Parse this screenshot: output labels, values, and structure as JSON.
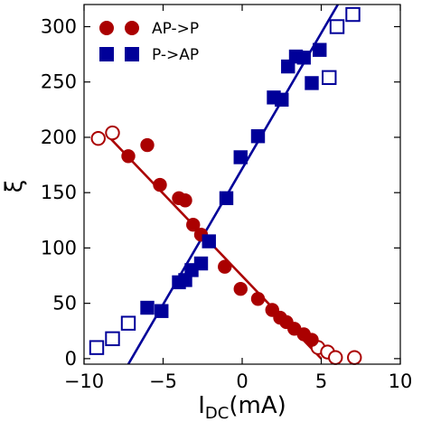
{
  "chart_data": {
    "type": "scatter",
    "xlabel": "I",
    "xlabel_sub": "DC",
    "xlabel_unit": "(mA)",
    "ylabel": "ξ",
    "xlim": [
      -10,
      10
    ],
    "ylim": [
      -5,
      320
    ],
    "xticks": [
      -10,
      -5,
      0,
      5,
      10
    ],
    "xtick_labels": [
      "−10",
      "−5",
      "0",
      "5",
      "10"
    ],
    "yticks": [
      0,
      50,
      100,
      150,
      200,
      250,
      300
    ],
    "ytick_labels": [
      "0",
      "50",
      "100",
      "150",
      "200",
      "250",
      "300"
    ],
    "grid": false,
    "legend_position": "top-left",
    "series": [
      {
        "name": "AP->P",
        "marker": "circle",
        "color": "#aa0000",
        "filled_points": [
          [
            -6,
            193
          ],
          [
            -7.2,
            183
          ],
          [
            -5.2,
            157
          ],
          [
            -4,
            145
          ],
          [
            -3.6,
            143
          ],
          [
            -3.1,
            121
          ],
          [
            -2.6,
            112
          ],
          [
            -1.1,
            83
          ],
          [
            -0.1,
            63
          ],
          [
            1,
            54
          ],
          [
            1.9,
            44
          ],
          [
            2.4,
            37
          ],
          [
            2.8,
            33
          ],
          [
            3.3,
            27
          ],
          [
            3.9,
            22
          ],
          [
            4.4,
            17
          ]
        ],
        "open_points": [
          [
            -9.1,
            199
          ],
          [
            -8.2,
            204
          ],
          [
            4.8,
            10
          ],
          [
            5.4,
            6
          ],
          [
            5.9,
            1
          ],
          [
            7.1,
            1
          ]
        ],
        "fit_line": [
          [
            -8.4,
            200
          ],
          [
            5,
            0
          ]
        ]
      },
      {
        "name": "P->AP",
        "marker": "square",
        "color": "#000099",
        "filled_points": [
          [
            -6,
            46
          ],
          [
            -5.1,
            43
          ],
          [
            -4,
            69
          ],
          [
            -3.6,
            71
          ],
          [
            -3.2,
            80
          ],
          [
            -2.6,
            86
          ],
          [
            -2.1,
            106
          ],
          [
            -1,
            145
          ],
          [
            -0.1,
            182
          ],
          [
            1,
            201
          ],
          [
            2,
            236
          ],
          [
            2.5,
            234
          ],
          [
            2.9,
            264
          ],
          [
            3.4,
            273
          ],
          [
            3.9,
            272
          ],
          [
            4.4,
            249
          ],
          [
            4.9,
            279
          ]
        ],
        "open_points": [
          [
            -9.2,
            10
          ],
          [
            -8.2,
            18
          ],
          [
            -7.2,
            32
          ],
          [
            5.5,
            254
          ],
          [
            6,
            300
          ],
          [
            7,
            311
          ]
        ],
        "fit_line": [
          [
            -7.2,
            -5
          ],
          [
            6.05,
            320
          ]
        ]
      }
    ]
  }
}
